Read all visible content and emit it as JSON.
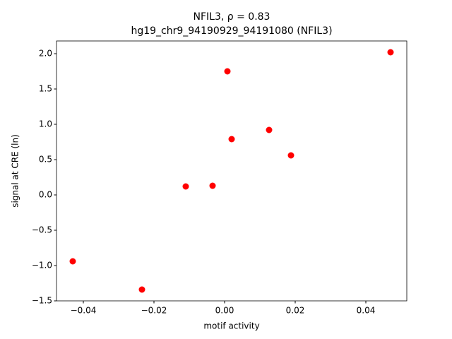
{
  "chart_data": {
    "type": "scatter",
    "title": "NFIL3, ρ = 0.83",
    "subtitle": "hg19_chr9_94190929_94191080 (NFIL3)",
    "x_label": "motif activity",
    "y_label": "signal at CRE (ln)",
    "color": "#ff0000",
    "x": [
      0.047,
      0.0008,
      0.002,
      0.0126,
      0.0188,
      -0.011,
      -0.0034,
      -0.043,
      -0.0234
    ],
    "values": [
      2.02,
      1.75,
      0.79,
      0.92,
      0.56,
      0.12,
      0.13,
      -0.94,
      -1.34
    ],
    "xlim": [
      -0.0476,
      0.0516
    ],
    "ylim": [
      -1.5,
      2.18
    ],
    "xticks": [
      {
        "value": -0.04,
        "label": "−0.04"
      },
      {
        "value": -0.02,
        "label": "−0.02"
      },
      {
        "value": 0,
        "label": "0.00"
      },
      {
        "value": 0.02,
        "label": "0.02"
      },
      {
        "value": 0.04,
        "label": "0.04"
      }
    ],
    "yticks": [
      {
        "value": -1.5,
        "label": "−1.5"
      },
      {
        "value": -1,
        "label": "−1.0"
      },
      {
        "value": -0.5,
        "label": "−0.5"
      },
      {
        "value": 0,
        "label": "0.0"
      },
      {
        "value": 0.5,
        "label": "0.5"
      },
      {
        "value": 1,
        "label": "1.0"
      },
      {
        "value": 1.5,
        "label": "1.5"
      },
      {
        "value": 2,
        "label": "2.0"
      }
    ]
  }
}
